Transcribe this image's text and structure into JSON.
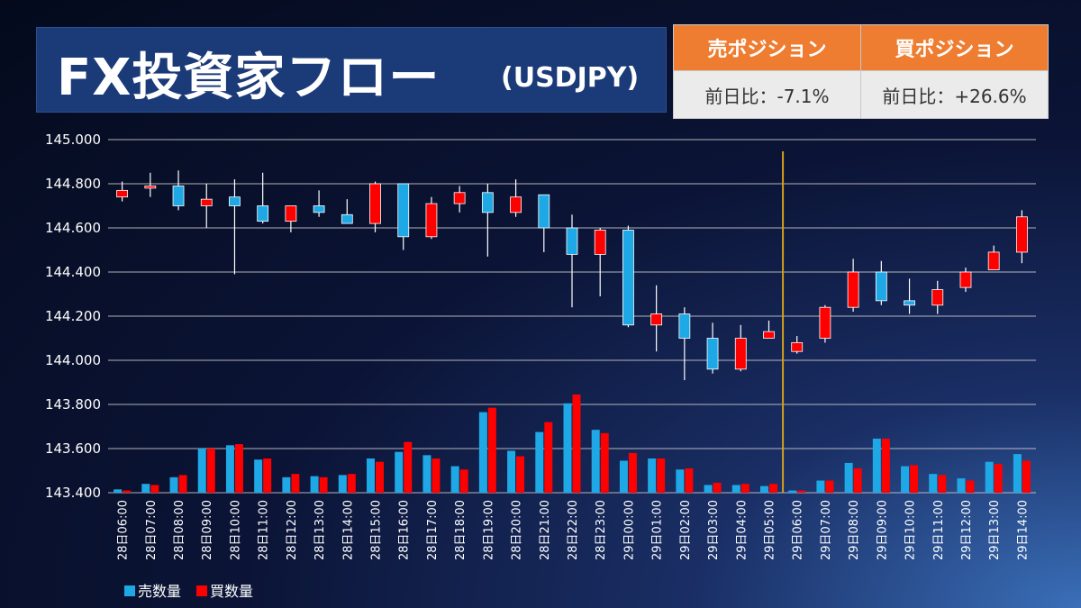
{
  "header": {
    "title": "FX投資家フロー",
    "subtitle": "(USDJPY)"
  },
  "positions": {
    "sell": {
      "label": "売ポジション",
      "change": "前日比：-7.1%"
    },
    "buy": {
      "label": "買ポジション",
      "change": "前日比：+26.6%"
    }
  },
  "colors": {
    "sell": "#1fa8e6",
    "buy": "#ff0000",
    "marker": "#d4a017",
    "grid": "#cfcfcf"
  },
  "chart_data": {
    "type": "candlestick+bar",
    "ylim": [
      143.4,
      145.0
    ],
    "yticks": [
      "145.000",
      "144.800",
      "144.600",
      "144.400",
      "144.200",
      "144.000",
      "143.800",
      "143.600",
      "143.400"
    ],
    "ytick_values": [
      145.0,
      144.8,
      144.6,
      144.4,
      144.2,
      144.0,
      143.8,
      143.6,
      143.4
    ],
    "categories": [
      "28日06:00",
      "28日07:00",
      "28日08:00",
      "28日09:00",
      "28日10:00",
      "28日11:00",
      "28日12:00",
      "28日13:00",
      "28日14:00",
      "28日15:00",
      "28日16:00",
      "28日17:00",
      "28日18:00",
      "28日19:00",
      "28日20:00",
      "28日21:00",
      "28日22:00",
      "28日23:00",
      "29日00:00",
      "29日01:00",
      "29日02:00",
      "29日03:00",
      "29日04:00",
      "29日05:00",
      "29日06:00",
      "29日07:00",
      "29日08:00",
      "29日09:00",
      "29日10:00",
      "29日11:00",
      "29日12:00",
      "29日13:00",
      "29日14:00"
    ],
    "marker_after_index": 23,
    "candles": [
      {
        "o": 144.77,
        "h": 144.81,
        "l": 144.72,
        "c": 144.74,
        "s": "buy"
      },
      {
        "o": 144.79,
        "h": 144.85,
        "l": 144.74,
        "c": 144.78,
        "s": "buy"
      },
      {
        "o": 144.79,
        "h": 144.86,
        "l": 144.68,
        "c": 144.7,
        "s": "sell"
      },
      {
        "o": 144.73,
        "h": 144.8,
        "l": 144.6,
        "c": 144.7,
        "s": "buy"
      },
      {
        "o": 144.74,
        "h": 144.82,
        "l": 144.39,
        "c": 144.7,
        "s": "sell"
      },
      {
        "o": 144.7,
        "h": 144.85,
        "l": 144.62,
        "c": 144.63,
        "s": "sell"
      },
      {
        "o": 144.7,
        "h": 144.7,
        "l": 144.58,
        "c": 144.63,
        "s": "buy"
      },
      {
        "o": 144.7,
        "h": 144.77,
        "l": 144.65,
        "c": 144.67,
        "s": "sell"
      },
      {
        "o": 144.66,
        "h": 144.73,
        "l": 144.62,
        "c": 144.62,
        "s": "sell"
      },
      {
        "o": 144.8,
        "h": 144.81,
        "l": 144.58,
        "c": 144.62,
        "s": "buy"
      },
      {
        "o": 144.8,
        "h": 144.8,
        "l": 144.5,
        "c": 144.56,
        "s": "sell"
      },
      {
        "o": 144.71,
        "h": 144.74,
        "l": 144.55,
        "c": 144.56,
        "s": "buy"
      },
      {
        "o": 144.76,
        "h": 144.79,
        "l": 144.67,
        "c": 144.71,
        "s": "buy"
      },
      {
        "o": 144.76,
        "h": 144.8,
        "l": 144.47,
        "c": 144.67,
        "s": "sell"
      },
      {
        "o": 144.74,
        "h": 144.82,
        "l": 144.65,
        "c": 144.67,
        "s": "buy"
      },
      {
        "o": 144.75,
        "h": 144.75,
        "l": 144.49,
        "c": 144.6,
        "s": "sell"
      },
      {
        "o": 144.6,
        "h": 144.66,
        "l": 144.24,
        "c": 144.48,
        "s": "sell"
      },
      {
        "o": 144.59,
        "h": 144.6,
        "l": 144.29,
        "c": 144.48,
        "s": "buy"
      },
      {
        "o": 144.59,
        "h": 144.61,
        "l": 144.15,
        "c": 144.16,
        "s": "sell"
      },
      {
        "o": 144.21,
        "h": 144.34,
        "l": 144.04,
        "c": 144.16,
        "s": "buy"
      },
      {
        "o": 144.21,
        "h": 144.24,
        "l": 143.91,
        "c": 144.1,
        "s": "sell"
      },
      {
        "o": 144.1,
        "h": 144.17,
        "l": 143.94,
        "c": 143.96,
        "s": "sell"
      },
      {
        "o": 144.1,
        "h": 144.16,
        "l": 143.95,
        "c": 143.96,
        "s": "buy"
      },
      {
        "o": 144.13,
        "h": 144.18,
        "l": 144.1,
        "c": 144.1,
        "s": "buy"
      },
      {
        "o": 144.08,
        "h": 144.11,
        "l": 144.03,
        "c": 144.04,
        "s": "buy"
      },
      {
        "o": 144.24,
        "h": 144.25,
        "l": 144.08,
        "c": 144.1,
        "s": "buy"
      },
      {
        "o": 144.4,
        "h": 144.46,
        "l": 144.22,
        "c": 144.24,
        "s": "buy"
      },
      {
        "o": 144.4,
        "h": 144.45,
        "l": 144.25,
        "c": 144.27,
        "s": "sell"
      },
      {
        "o": 144.27,
        "h": 144.37,
        "l": 144.21,
        "c": 144.25,
        "s": "sell"
      },
      {
        "o": 144.32,
        "h": 144.36,
        "l": 144.21,
        "c": 144.25,
        "s": "buy"
      },
      {
        "o": 144.4,
        "h": 144.42,
        "l": 144.31,
        "c": 144.33,
        "s": "buy"
      },
      {
        "o": 144.49,
        "h": 144.52,
        "l": 144.41,
        "c": 144.41,
        "s": "buy"
      },
      {
        "o": 144.65,
        "h": 144.68,
        "l": 144.44,
        "c": 144.49,
        "s": "buy"
      }
    ],
    "series": [
      {
        "name": "売数量",
        "values": [
          143.415,
          143.44,
          143.47,
          143.6,
          143.615,
          143.55,
          143.47,
          143.475,
          143.48,
          143.555,
          143.585,
          143.57,
          143.52,
          143.765,
          143.59,
          143.675,
          143.805,
          143.685,
          143.545,
          143.555,
          143.505,
          143.435,
          143.435,
          143.43,
          143.41,
          143.455,
          143.535,
          143.645,
          143.52,
          143.485,
          143.465,
          143.54,
          143.575
        ]
      },
      {
        "name": "買数量",
        "values": [
          143.41,
          143.435,
          143.48,
          143.6,
          143.62,
          143.555,
          143.485,
          143.47,
          143.485,
          143.54,
          143.63,
          143.555,
          143.505,
          143.785,
          143.565,
          143.72,
          143.845,
          143.67,
          143.58,
          143.555,
          143.51,
          143.445,
          143.44,
          143.44,
          143.41,
          143.455,
          143.51,
          143.645,
          143.525,
          143.48,
          143.455,
          143.53,
          143.545
        ]
      }
    ]
  }
}
